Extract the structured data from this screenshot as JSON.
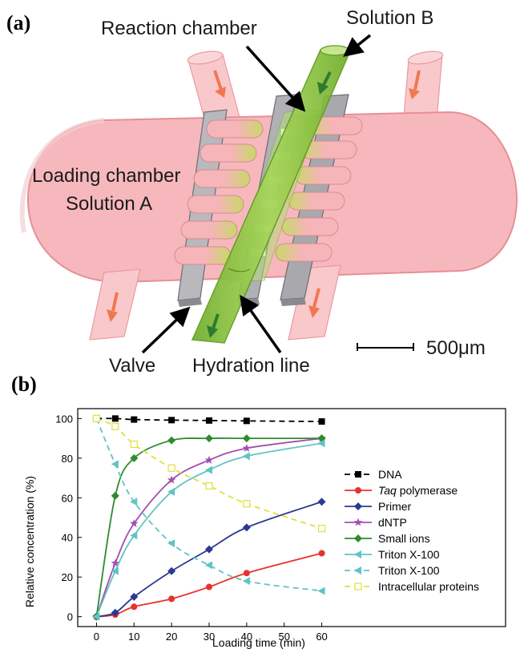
{
  "panel_a": {
    "label": "(a)",
    "callouts": {
      "reaction_chamber": "Reaction chamber",
      "solution_b": "Solution  B",
      "loading_chamber": "Loading chamber",
      "solution_a": "Solution  A",
      "valve": "Valve",
      "hydration_line": "Hydration  line",
      "scale_bar": "500μm"
    },
    "colors": {
      "loading_chamber_fill": "#f7b8bd",
      "loading_chamber_edge": "#e89aa0",
      "hydration_line": "#8dc63f",
      "flow_arrow": "#f07850",
      "valve": "#b0b0b5"
    }
  },
  "panel_b": {
    "label": "(b)",
    "chart_data": {
      "type": "line",
      "xlabel": "Loading time (min)",
      "ylabel": "Relative concentration (%)",
      "xlim": [
        -5,
        65
      ],
      "ylim": [
        -5,
        105
      ],
      "xticks": [
        0,
        10,
        20,
        30,
        40,
        50,
        60
      ],
      "yticks": [
        0,
        20,
        40,
        60,
        80,
        100
      ],
      "legend_position": "right",
      "series": [
        {
          "name": "DNA",
          "color": "#000000",
          "marker": "square",
          "dashed": true,
          "x": [
            0,
            5,
            10,
            20,
            30,
            40,
            60
          ],
          "y": [
            100,
            100,
            99.5,
            99.2,
            99,
            98.8,
            98.5
          ]
        },
        {
          "name": "polymerase",
          "name_prefix": "Taq",
          "color": "#e8322b",
          "marker": "circle",
          "dashed": false,
          "x": [
            0,
            5,
            10,
            20,
            30,
            40,
            60
          ],
          "y": [
            0,
            1,
            5,
            9,
            15,
            22,
            32
          ]
        },
        {
          "name": "Primer",
          "color": "#2b3990",
          "marker": "diamond",
          "dashed": false,
          "x": [
            0,
            5,
            10,
            20,
            30,
            40,
            60
          ],
          "y": [
            0,
            2,
            10,
            23,
            34,
            45,
            58
          ]
        },
        {
          "name": "dNTP",
          "color": "#a34fb0",
          "marker": "star",
          "dashed": false,
          "x": [
            0,
            5,
            10,
            20,
            30,
            40,
            60
          ],
          "y": [
            0,
            27,
            47,
            69,
            79,
            85,
            90
          ]
        },
        {
          "name": "Small ions",
          "color": "#2e8b2e",
          "marker": "diamond",
          "dashed": false,
          "x": [
            0,
            5,
            10,
            20,
            30,
            40,
            60
          ],
          "y": [
            0,
            61,
            80,
            89,
            90,
            90,
            90
          ]
        },
        {
          "name": "Triton X-100",
          "color": "#5fc4c4",
          "marker": "triangle-left",
          "dashed": false,
          "x": [
            0,
            5,
            10,
            20,
            30,
            40,
            60
          ],
          "y": [
            0,
            23,
            41,
            63,
            74,
            81,
            87.5
          ]
        },
        {
          "name": "Triton X-100",
          "color": "#5fc4c4",
          "marker": "triangle-left",
          "dashed": true,
          "x": [
            0,
            5,
            10,
            20,
            30,
            40,
            60
          ],
          "y": [
            100,
            77,
            58,
            37,
            26,
            18,
            13
          ]
        },
        {
          "name": "Intracellular proteins",
          "color": "#e0e040",
          "marker": "square-open",
          "dashed": true,
          "x": [
            0,
            5,
            10,
            20,
            30,
            40,
            60
          ],
          "y": [
            100,
            96,
            87,
            75,
            66,
            57,
            44.5
          ]
        }
      ]
    }
  }
}
